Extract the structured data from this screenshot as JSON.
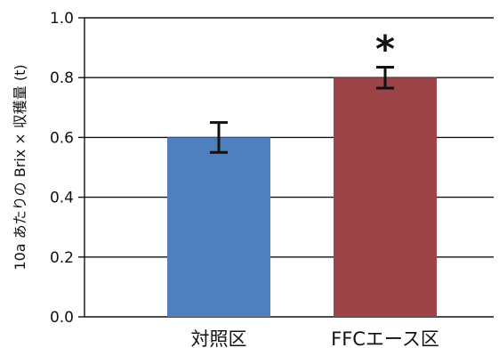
{
  "chart_data": {
    "type": "bar",
    "categories": [
      "対照区",
      "FFCエース区"
    ],
    "values": [
      0.6,
      0.8
    ],
    "error": [
      0.05,
      0.035
    ],
    "colors": [
      "#4f7fbf",
      "#9c4447"
    ],
    "ylabel": "10a あたりの Brix × 収穫量 (t)",
    "xlabel": "",
    "ylim": [
      0,
      1.0
    ],
    "yticks": [
      "0.0",
      "0.2",
      "0.4",
      "0.6",
      "0.8",
      "1.0"
    ],
    "grid": true,
    "annotations": [
      {
        "category": "FFCエース区",
        "text": "*"
      }
    ]
  }
}
